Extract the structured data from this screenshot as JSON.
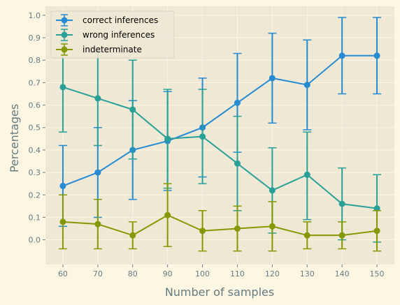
{
  "chart_data": {
    "type": "line",
    "title": "",
    "xlabel": "Number of samples",
    "ylabel": "Percentages",
    "x": [
      60,
      70,
      80,
      90,
      100,
      110,
      120,
      130,
      140,
      150
    ],
    "xticks": [
      "60",
      "70",
      "80",
      "90",
      "100",
      "110",
      "120",
      "130",
      "140",
      "150"
    ],
    "yticks": [
      "0.0",
      "0.1",
      "0.2",
      "0.3",
      "0.4",
      "0.5",
      "0.6",
      "0.7",
      "0.8",
      "0.9",
      "1.0"
    ],
    "xlim": [
      55,
      155
    ],
    "ylim": [
      -0.11,
      1.04
    ],
    "grid": true,
    "legend": "top-left",
    "error_bars": true,
    "series": [
      {
        "name": "correct inferences",
        "color": "#268bd2",
        "values": [
          0.24,
          0.3,
          0.4,
          0.44,
          0.5,
          0.61,
          0.72,
          0.69,
          0.82,
          0.82
        ],
        "error_low": [
          0.06,
          0.1,
          0.18,
          0.22,
          0.28,
          0.39,
          0.52,
          0.49,
          0.65,
          0.65
        ],
        "error_high": [
          0.42,
          0.5,
          0.62,
          0.66,
          0.72,
          0.83,
          0.92,
          0.89,
          0.99,
          0.99
        ]
      },
      {
        "name": "wrong inferences",
        "color": "#2aa198",
        "values": [
          0.68,
          0.63,
          0.58,
          0.45,
          0.46,
          0.34,
          0.22,
          0.29,
          0.16,
          0.14
        ],
        "error_low": [
          0.48,
          0.42,
          0.36,
          0.23,
          0.25,
          0.13,
          0.03,
          0.09,
          0.0,
          -0.01
        ],
        "error_high": [
          0.88,
          0.84,
          0.8,
          0.67,
          0.67,
          0.55,
          0.41,
          0.48,
          0.32,
          0.29
        ]
      },
      {
        "name": "indeterminate",
        "color": "#859900",
        "values": [
          0.08,
          0.07,
          0.02,
          0.11,
          0.04,
          0.05,
          0.06,
          0.02,
          0.02,
          0.04
        ],
        "error_low": [
          -0.04,
          -0.04,
          -0.04,
          -0.03,
          -0.05,
          -0.05,
          -0.05,
          -0.04,
          -0.04,
          -0.05
        ],
        "error_high": [
          0.2,
          0.18,
          0.08,
          0.25,
          0.13,
          0.15,
          0.17,
          0.08,
          0.08,
          0.13
        ]
      }
    ]
  }
}
